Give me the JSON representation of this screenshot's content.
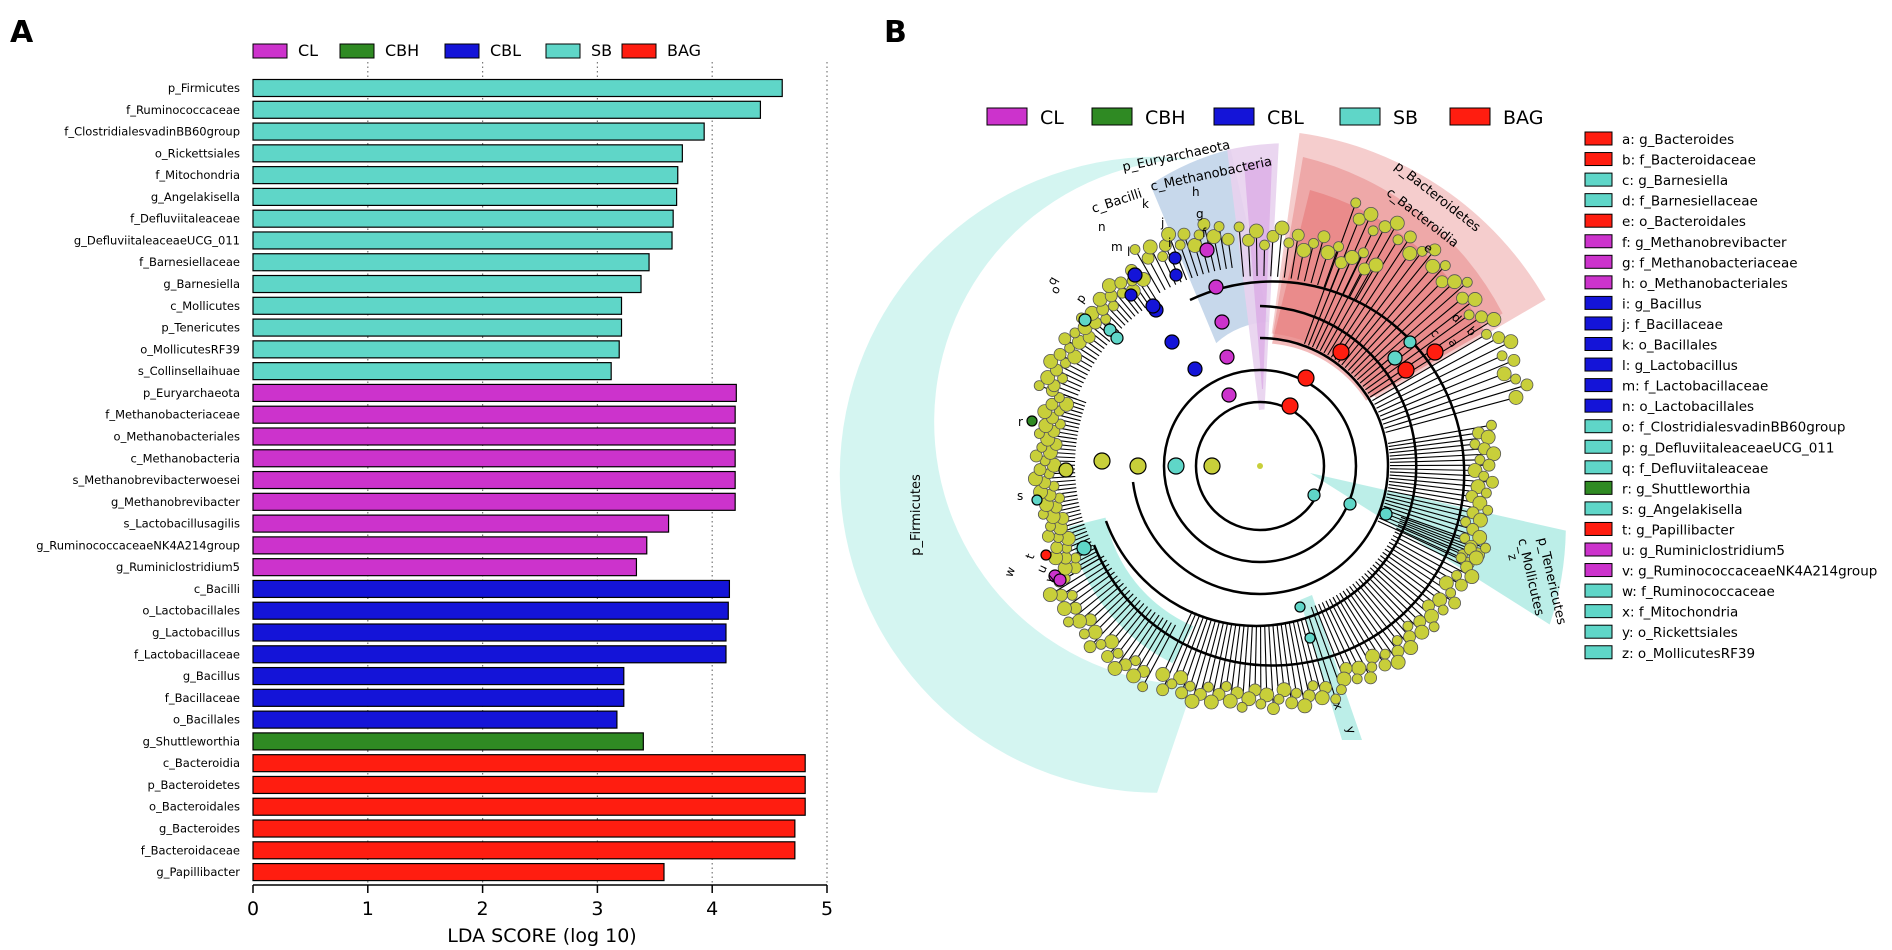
{
  "colors": {
    "CL": "#cc33cc",
    "CBH": "#2f8a23",
    "CBL": "#1414d8",
    "SB": "#5fd6c8",
    "BAG": "#ff1d10",
    "node": "#c8cf3a"
  },
  "panel_a": {
    "label": "A",
    "legend": [
      {
        "name": "CL",
        "group": "CL"
      },
      {
        "name": "CBH",
        "group": "CBH"
      },
      {
        "name": "CBL",
        "group": "CBL"
      },
      {
        "name": "SB",
        "group": "SB"
      },
      {
        "name": "BAG",
        "group": "BAG"
      }
    ]
  },
  "chart_data": {
    "type": "bar",
    "orientation": "horizontal",
    "title": "",
    "xlabel": "LDA SCORE (log 10)",
    "ylabel": "",
    "xlim": [
      0,
      5
    ],
    "xticks": [
      "0",
      "1",
      "2",
      "3",
      "4",
      "5"
    ],
    "grid": "vertical dotted at 1, 2, 3, 4, 5",
    "legend_position": "top",
    "categories": [
      "p_Firmicutes",
      "f_Ruminococcaceae",
      "f_ClostridialesvadinBB60group",
      "o_Rickettsiales",
      "f_Mitochondria",
      "g_Angelakisella",
      "f_Defluviitaleaceae",
      "g_DefluviitaleaceaeUCG_011",
      "f_Barnesiellaceae",
      "g_Barnesiella",
      "c_Mollicutes",
      "p_Tenericutes",
      "o_MollicutesRF39",
      "s_Collinsellaihuae",
      "p_Euryarchaeota",
      "f_Methanobacteriaceae",
      "o_Methanobacteriales",
      "c_Methanobacteria",
      "s_Methanobrevibacterwoesei",
      "g_Methanobrevibacter",
      "s_Lactobacillusagilis",
      "g_RuminococcaceaeNK4A214group",
      "g_Ruminiclostridium5",
      "c_Bacilli",
      "o_Lactobacillales",
      "g_Lactobacillus",
      "f_Lactobacillaceae",
      "g_Bacillus",
      "f_Bacillaceae",
      "o_Bacillales",
      "g_Shuttleworthia",
      "c_Bacteroidia",
      "p_Bacteroidetes",
      "o_Bacteroidales",
      "g_Bacteroides",
      "f_Bacteroidaceae",
      "g_Papillibacter"
    ],
    "values": [
      4.61,
      4.42,
      3.93,
      3.74,
      3.7,
      3.69,
      3.66,
      3.65,
      3.45,
      3.38,
      3.21,
      3.21,
      3.19,
      3.12,
      4.21,
      4.2,
      4.2,
      4.2,
      4.2,
      4.2,
      3.62,
      3.43,
      3.34,
      4.15,
      4.14,
      4.12,
      4.12,
      3.23,
      3.23,
      3.17,
      3.4,
      4.81,
      4.81,
      4.81,
      4.72,
      4.72,
      3.58
    ],
    "groups": [
      "SB",
      "SB",
      "SB",
      "SB",
      "SB",
      "SB",
      "SB",
      "SB",
      "SB",
      "SB",
      "SB",
      "SB",
      "SB",
      "SB",
      "CL",
      "CL",
      "CL",
      "CL",
      "CL",
      "CL",
      "CL",
      "CL",
      "CL",
      "CBL",
      "CBL",
      "CBL",
      "CBL",
      "CBL",
      "CBL",
      "CBL",
      "CBH",
      "BAG",
      "BAG",
      "BAG",
      "BAG",
      "BAG",
      "BAG"
    ]
  },
  "panel_b": {
    "label": "B",
    "legend": [
      {
        "name": "CL",
        "group": "CL"
      },
      {
        "name": "CBH",
        "group": "CBH"
      },
      {
        "name": "CBL",
        "group": "CBL"
      },
      {
        "name": "SB",
        "group": "SB"
      },
      {
        "name": "BAG",
        "group": "BAG"
      }
    ],
    "clade_labels": [
      {
        "text": "p_Firmicutes",
        "group": "SB"
      },
      {
        "text": "p_Euryarchaeota",
        "group": "CL"
      },
      {
        "text": "c_Methanobacteria",
        "group": "CL"
      },
      {
        "text": "c_Bacilli",
        "group": "CBL"
      },
      {
        "text": "p_Bacteroidetes",
        "group": "BAG"
      },
      {
        "text": "c_Bacteroidia",
        "group": "BAG"
      },
      {
        "text": "p_Tenericutes",
        "group": "SB"
      },
      {
        "text": "c_Mollicutes",
        "group": "SB"
      }
    ],
    "node_letters": [
      "a",
      "b",
      "c",
      "d",
      "e",
      "f",
      "g",
      "h",
      "i",
      "j",
      "k",
      "l",
      "m",
      "n",
      "o",
      "p",
      "q",
      "r",
      "s",
      "t",
      "u",
      "v",
      "w",
      "x",
      "y",
      "z"
    ],
    "key": [
      {
        "text": "a: g_Bacteroides",
        "group": "BAG"
      },
      {
        "text": "b: f_Bacteroidaceae",
        "group": "BAG"
      },
      {
        "text": "c: g_Barnesiella",
        "group": "SB"
      },
      {
        "text": "d: f_Barnesiellaceae",
        "group": "SB"
      },
      {
        "text": "e: o_Bacteroidales",
        "group": "BAG"
      },
      {
        "text": "f: g_Methanobrevibacter",
        "group": "CL"
      },
      {
        "text": "g: f_Methanobacteriaceae",
        "group": "CL"
      },
      {
        "text": "h: o_Methanobacteriales",
        "group": "CL"
      },
      {
        "text": "i: g_Bacillus",
        "group": "CBL"
      },
      {
        "text": "j: f_Bacillaceae",
        "group": "CBL"
      },
      {
        "text": "k: o_Bacillales",
        "group": "CBL"
      },
      {
        "text": "l: g_Lactobacillus",
        "group": "CBL"
      },
      {
        "text": "m: f_Lactobacillaceae",
        "group": "CBL"
      },
      {
        "text": "n: o_Lactobacillales",
        "group": "CBL"
      },
      {
        "text": "o: f_ClostridialesvadinBB60group",
        "group": "SB"
      },
      {
        "text": "p: g_DefluviitaleaceaeUCG_011",
        "group": "SB"
      },
      {
        "text": "q: f_Defluviitaleaceae",
        "group": "SB"
      },
      {
        "text": "r: g_Shuttleworthia",
        "group": "CBH"
      },
      {
        "text": "s: g_Angelakisella",
        "group": "SB"
      },
      {
        "text": "t: g_Papillibacter",
        "group": "BAG"
      },
      {
        "text": "u: g_Ruminiclostridium5",
        "group": "CL"
      },
      {
        "text": "v: g_RuminococcaceaeNK4A214group",
        "group": "CL"
      },
      {
        "text": "w: f_Ruminococcaceae",
        "group": "SB"
      },
      {
        "text": "x: f_Mitochondria",
        "group": "SB"
      },
      {
        "text": "y: o_Rickettsiales",
        "group": "SB"
      },
      {
        "text": "z: o_MollicutesRF39",
        "group": "SB"
      }
    ]
  }
}
